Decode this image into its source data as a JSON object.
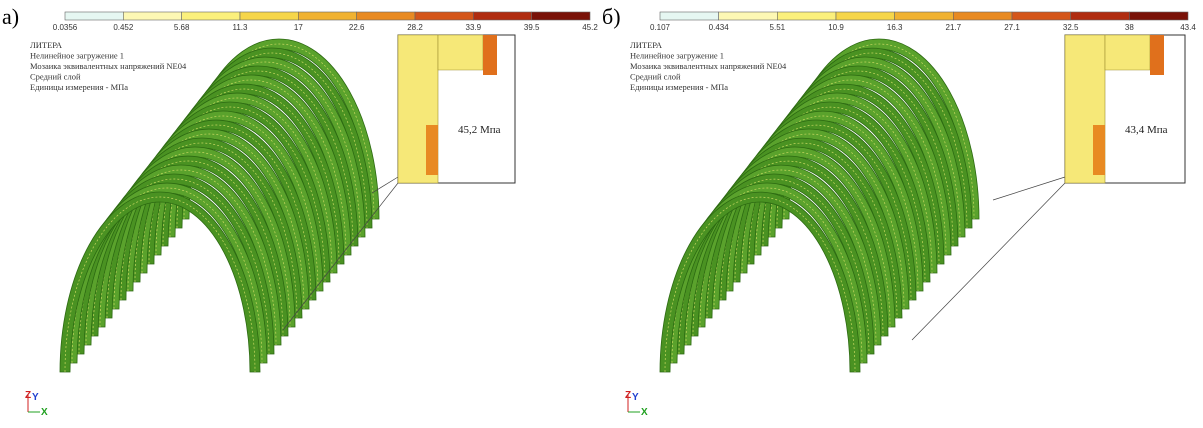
{
  "panels": [
    {
      "label": "а)",
      "legend": {
        "ticks": [
          "0.0356",
          "0.452",
          "5.68",
          "11.3",
          "17",
          "22.6",
          "28.2",
          "33.9",
          "39.5",
          "45.2"
        ],
        "colors": [
          "#e6f7f2",
          "#fdf8b4",
          "#fbf07c",
          "#f6d64a",
          "#f0b232",
          "#e88a22",
          "#d4561a",
          "#b02c10",
          "#7a1208"
        ]
      },
      "info": [
        "ЛИТЕРА",
        "Нелинейное загружение 1",
        "Мозаика эквивалентных напряжений NE04",
        "Средний слой",
        "Единицы измерения - МПа"
      ],
      "callout": "45,2 Мпа",
      "axes": {
        "z": "Z",
        "y": "Y",
        "x": "X"
      }
    },
    {
      "label": "б)",
      "legend": {
        "ticks": [
          "0.107",
          "0.434",
          "5.51",
          "10.9",
          "16.3",
          "21.7",
          "27.1",
          "32.5",
          "38",
          "43.4"
        ],
        "colors": [
          "#e6f7f2",
          "#fdf8b4",
          "#fbf07c",
          "#f6d64a",
          "#f0b232",
          "#e88a22",
          "#d4561a",
          "#b02c10",
          "#7a1208"
        ]
      },
      "info": [
        "ЛИТЕРА",
        "Нелинейное загружение 1",
        "Мозаика эквивалентных напряжений NE04",
        "Средний слой",
        "Единицы измерения - МПа"
      ],
      "callout": "43,4 Мпа",
      "axes": {
        "z": "Z",
        "y": "Y",
        "x": "X"
      }
    }
  ]
}
